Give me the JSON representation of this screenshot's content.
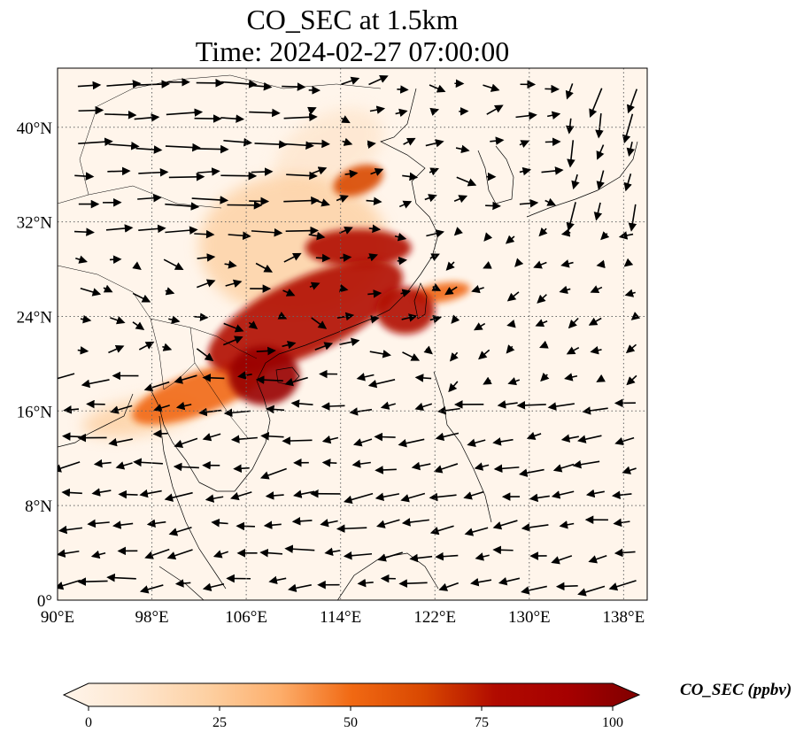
{
  "title": {
    "line1": "CO_SEC at 1.5km",
    "line2": "Time: 2024-02-27 07:00:00"
  },
  "map": {
    "lon_range": [
      90,
      140
    ],
    "lat_range": [
      0,
      45
    ],
    "lon_ticks": [
      "90°E",
      "98°E",
      "106°E",
      "114°E",
      "122°E",
      "130°E",
      "138°E"
    ],
    "lon_tick_values": [
      90,
      98,
      106,
      114,
      122,
      130,
      138
    ],
    "lat_ticks": [
      "0°",
      "8°N",
      "16°N",
      "24°N",
      "32°N",
      "40°N"
    ],
    "lat_tick_values": [
      0,
      8,
      16,
      24,
      32,
      40
    ],
    "gridlines": true
  },
  "colorbar": {
    "label": "CO_SEC (ppbv)",
    "ticks": [
      "0",
      "25",
      "50",
      "75",
      "100"
    ],
    "range": [
      0,
      100
    ],
    "colors": [
      "#fff5eb",
      "#fee6ce",
      "#fdd0a2",
      "#fdae6b",
      "#fd8d3c",
      "#f16913",
      "#d94801",
      "#a63603",
      "#7f2704"
    ]
  },
  "concentration_regions": [
    {
      "name": "south-china-band",
      "lon": 111,
      "lat": 24,
      "rx": 9,
      "ry": 3.2,
      "rot": -25,
      "value": 85
    },
    {
      "name": "vietnam-gulf",
      "lon": 107.5,
      "lat": 19,
      "rx": 3,
      "ry": 2.5,
      "rot": 0,
      "value": 90
    },
    {
      "name": "indochina-plume",
      "lon": 102,
      "lat": 17.5,
      "rx": 6,
      "ry": 1.8,
      "rot": -20,
      "value": 55
    },
    {
      "name": "yangtze-cluster",
      "lon": 115.5,
      "lat": 29.8,
      "rx": 4.5,
      "ry": 1.6,
      "rot": 0,
      "value": 80
    },
    {
      "name": "north-china-patch",
      "lon": 115.5,
      "lat": 35.5,
      "rx": 2.2,
      "ry": 1.2,
      "rot": -20,
      "value": 75
    },
    {
      "name": "taiwan-strait",
      "lon": 119.5,
      "lat": 24.5,
      "rx": 2.5,
      "ry": 2,
      "rot": 0,
      "value": 88
    },
    {
      "name": "east-china-tongue",
      "lon": 122.5,
      "lat": 26,
      "rx": 2.5,
      "ry": 0.8,
      "rot": -10,
      "value": 60
    },
    {
      "name": "central-china-haze",
      "lon": 110,
      "lat": 30,
      "rx": 8,
      "ry": 6,
      "rot": 0,
      "value": 25
    },
    {
      "name": "north-haze",
      "lon": 113,
      "lat": 38,
      "rx": 5,
      "ry": 3,
      "rot": -30,
      "value": 20
    },
    {
      "name": "myanmar-haze",
      "lon": 97,
      "lat": 15.5,
      "rx": 5,
      "ry": 1.5,
      "rot": -10,
      "value": 30
    }
  ]
}
